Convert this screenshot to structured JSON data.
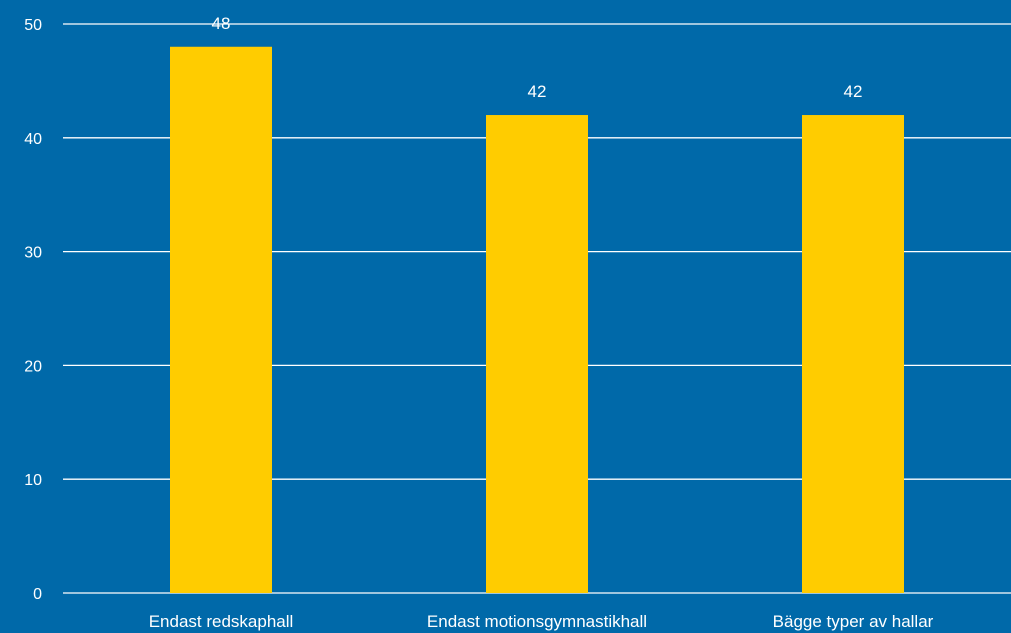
{
  "chart_data": {
    "type": "bar",
    "categories": [
      "Endast redskaphall",
      "Endast motionsgymnastikhall",
      "Bägge typer av hallar"
    ],
    "values": [
      48,
      42,
      42
    ],
    "data_labels": [
      "48",
      "42",
      "42"
    ],
    "yticks": [
      "0",
      "10",
      "20",
      "30",
      "40",
      "50"
    ],
    "ylim": [
      0,
      50
    ],
    "grid": true,
    "legend": "none",
    "colors": {
      "background": "#0069A9",
      "bar": "#FFCC00",
      "grid": "#FFFFFF",
      "text": "#FFFFFF"
    }
  }
}
